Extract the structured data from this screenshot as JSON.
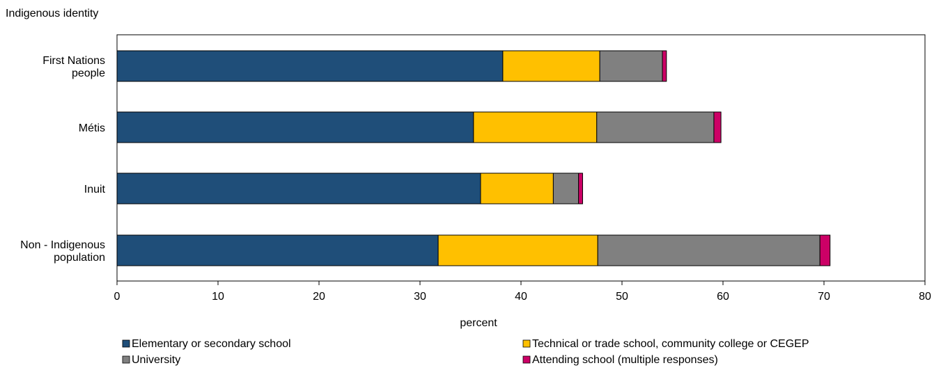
{
  "chart_data": {
    "type": "bar",
    "orientation": "horizontal",
    "stacked": true,
    "y_axis_title": "Indigenous identity",
    "xlabel": "percent",
    "xlim": [
      0,
      80
    ],
    "x_ticks": [
      0,
      10,
      20,
      30,
      40,
      50,
      60,
      70,
      80
    ],
    "grid": false,
    "legend_position": "bottom",
    "categories": [
      [
        "First Nations",
        "people"
      ],
      [
        "Métis"
      ],
      [
        "Inuit"
      ],
      [
        "Non - Indigenous",
        "population"
      ]
    ],
    "series": [
      {
        "name": "Elementary or secondary school",
        "color": "#1f4e79",
        "values": [
          38.2,
          35.3,
          36.0,
          31.8
        ]
      },
      {
        "name": "Technical or trade school, community college or CEGEP",
        "color": "#ffc000",
        "values": [
          9.6,
          12.2,
          7.2,
          15.8
        ]
      },
      {
        "name": "University",
        "color": "#808080",
        "values": [
          6.2,
          11.6,
          2.5,
          22.0
        ]
      },
      {
        "name": "Attending school (multiple responses)",
        "color": "#cc0066",
        "values": [
          0.4,
          0.7,
          0.4,
          1.0
        ]
      }
    ]
  }
}
